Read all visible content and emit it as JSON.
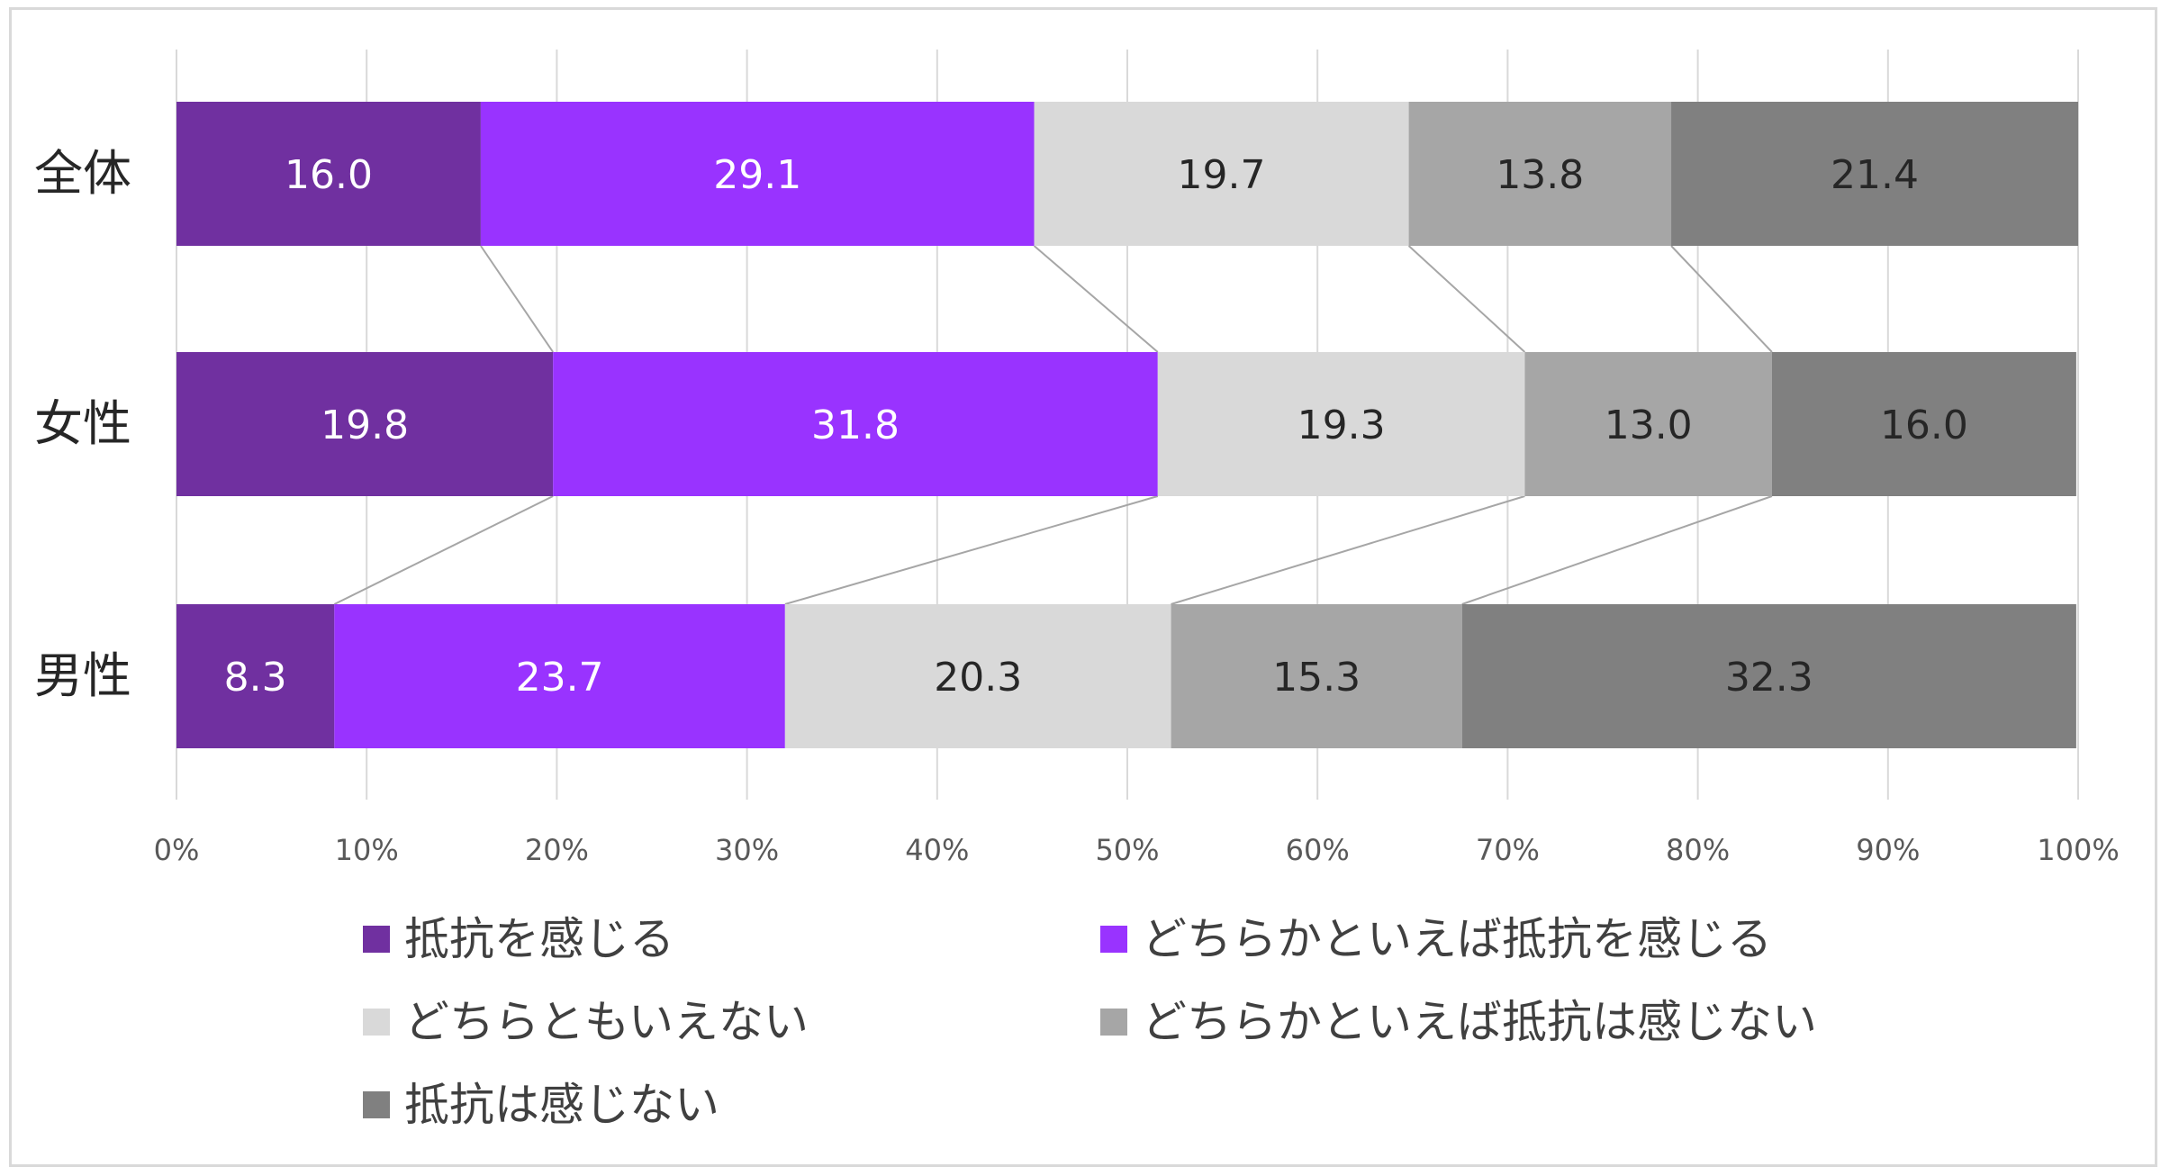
{
  "chart_data": {
    "type": "bar",
    "orientation": "horizontal",
    "stacked": "100%",
    "categories": [
      "全体",
      "女性",
      "男性"
    ],
    "series": [
      {
        "name": "抵抗を感じる",
        "values": [
          16.0,
          19.8,
          8.3
        ],
        "color": "#7030a0",
        "label_color": "#ffffff"
      },
      {
        "name": "どちらかといえば抵抗を感じる",
        "values": [
          29.1,
          31.8,
          23.7
        ],
        "color": "#9933ff",
        "label_color": "#ffffff"
      },
      {
        "name": "どちらともいえない",
        "values": [
          19.7,
          19.3,
          20.3
        ],
        "color": "#d9d9d9",
        "label_color": "#262626"
      },
      {
        "name": "どちらかといえば抵抗は感じない",
        "values": [
          13.8,
          13.0,
          15.3
        ],
        "color": "#a6a6a6",
        "label_color": "#262626"
      },
      {
        "name": "抵抗は感じない",
        "values": [
          21.4,
          16.0,
          32.3
        ],
        "color": "#808080",
        "label_color": "#262626"
      }
    ],
    "x_ticks": [
      "0%",
      "10%",
      "20%",
      "30%",
      "40%",
      "50%",
      "60%",
      "70%",
      "80%",
      "90%",
      "100%"
    ],
    "xlim": [
      0,
      100
    ],
    "grid": true,
    "series_lines": true,
    "legend_position": "bottom",
    "title": "",
    "xlabel": "",
    "ylabel": ""
  }
}
